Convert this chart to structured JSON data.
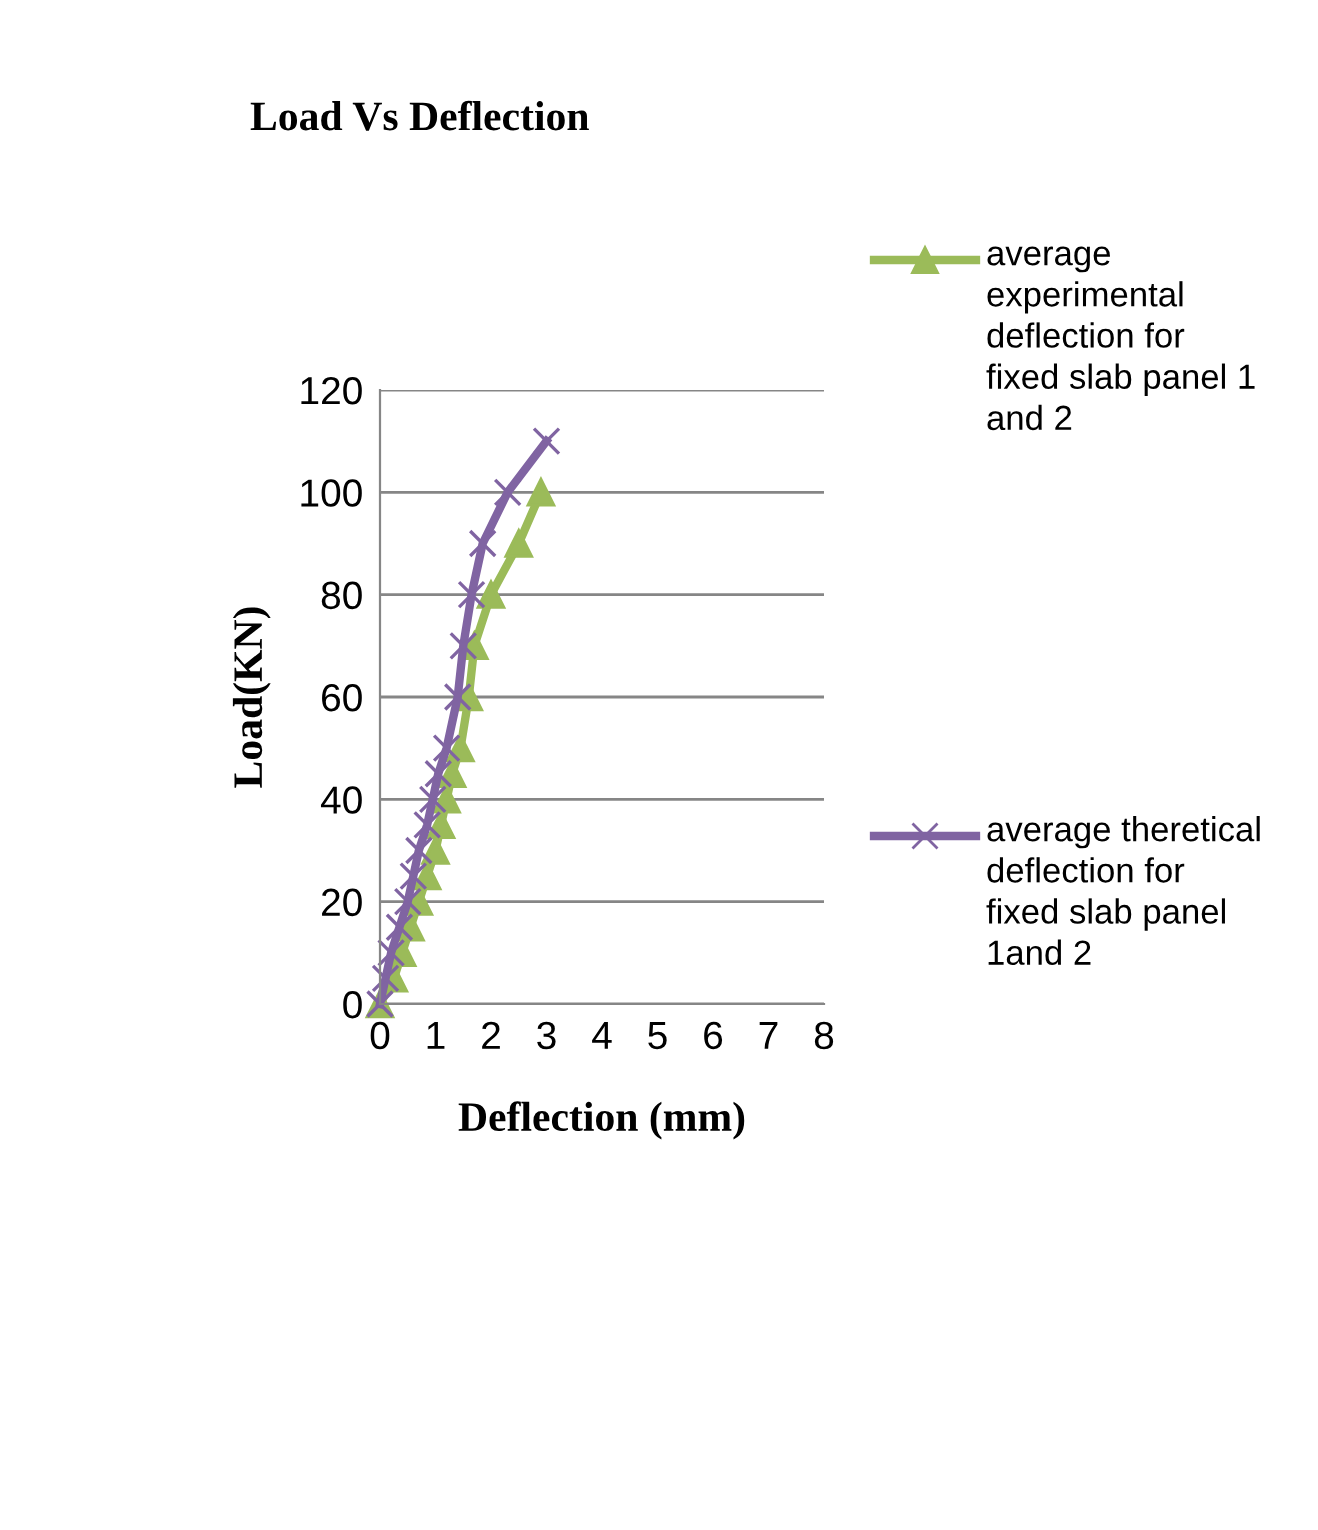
{
  "chart_data": {
    "type": "line",
    "title": "Load Vs Deflection",
    "xlabel": "Deflection (mm)",
    "ylabel": "Load(KN)",
    "xlim": [
      0,
      8
    ],
    "xticks": [
      0,
      1,
      2,
      3,
      4,
      5,
      6,
      7,
      8
    ],
    "ylim": [
      0,
      120
    ],
    "yticks": [
      0,
      20,
      40,
      60,
      80,
      100,
      120
    ],
    "grid": "y",
    "legend": "right",
    "series": [
      {
        "name": "average experimental deflection for fixed slab panel 1 and 2",
        "color": "#9bbb59",
        "marker": "triangle",
        "x": [
          0,
          0.25,
          0.4,
          0.55,
          0.7,
          0.85,
          1.0,
          1.1,
          1.2,
          1.3,
          1.45,
          1.6,
          1.7,
          2.0,
          2.5,
          2.9
        ],
        "values": [
          0,
          5,
          10,
          15,
          20,
          25,
          30,
          35,
          40,
          45,
          50,
          60,
          70,
          80,
          90,
          100
        ]
      },
      {
        "name": "average theretical deflection for fixed slab panel 1and 2",
        "color": "#8064a2",
        "marker": "cross",
        "x": [
          0,
          0.1,
          0.2,
          0.35,
          0.5,
          0.6,
          0.7,
          0.85,
          0.95,
          1.05,
          1.2,
          1.4,
          1.5,
          1.65,
          1.85,
          2.3,
          3.0
        ],
        "values": [
          0,
          5,
          10,
          15,
          20,
          25,
          30,
          35,
          40,
          45,
          50,
          60,
          70,
          80,
          90,
          100,
          110
        ]
      }
    ]
  }
}
